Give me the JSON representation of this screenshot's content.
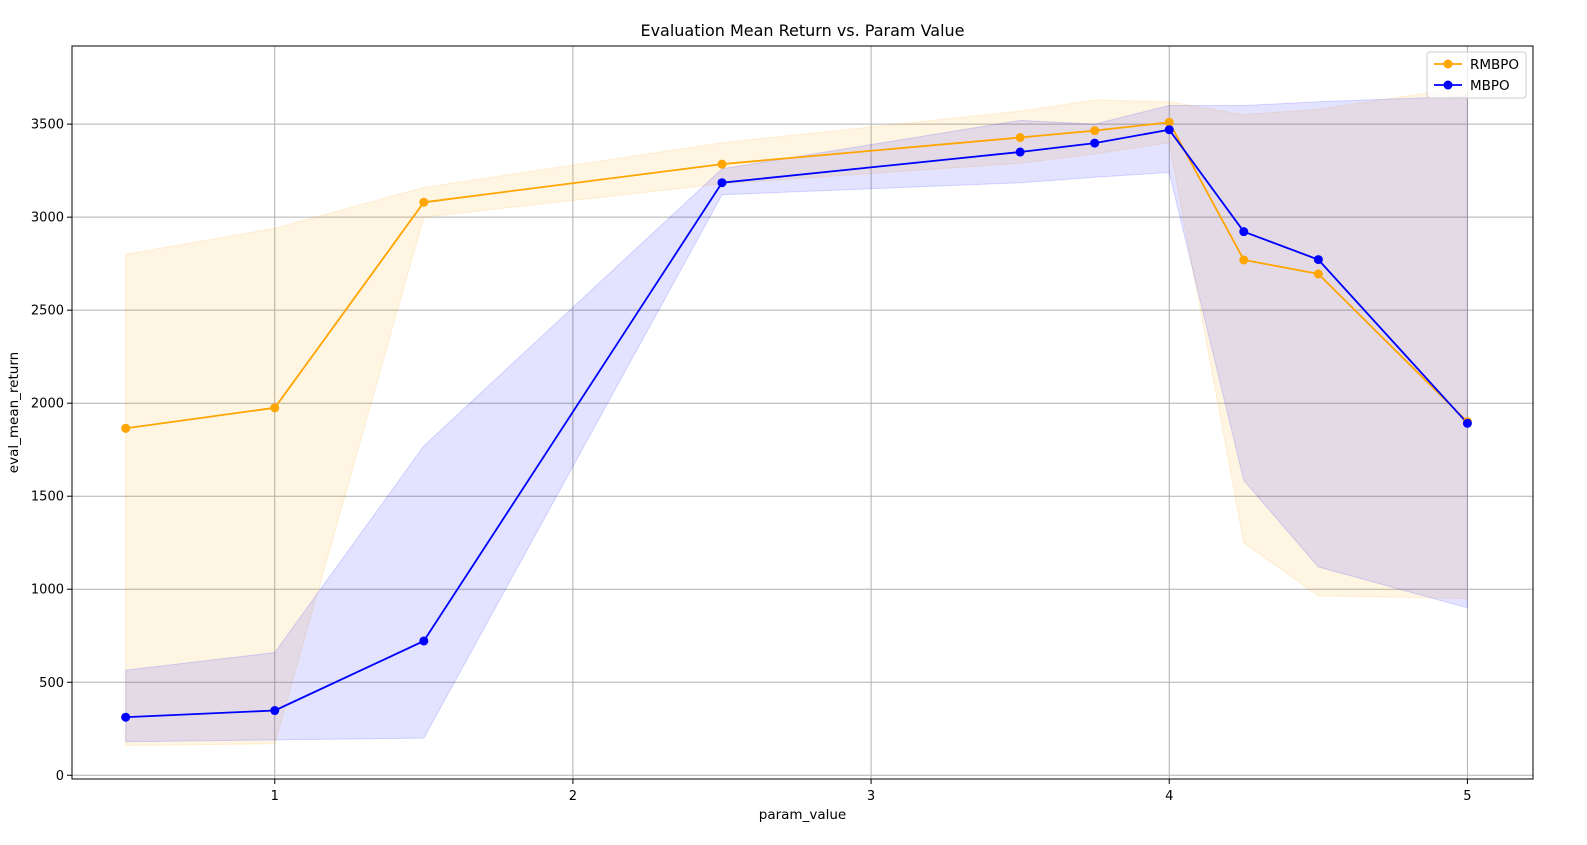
{
  "chart_data": {
    "type": "line",
    "title": "Evaluation Mean Return vs. Param Value",
    "xlabel": "param_value",
    "ylabel": "eval_mean_return",
    "xlim": [
      0.32,
      5.22
    ],
    "ylim": [
      -20,
      3920
    ],
    "xticks": [
      1,
      2,
      3,
      4,
      5
    ],
    "yticks": [
      0,
      500,
      1000,
      1500,
      2000,
      2500,
      3000,
      3500
    ],
    "grid": true,
    "legend_position": "top-right",
    "x": [
      0.5,
      1.0,
      1.5,
      2.5,
      3.5,
      3.75,
      4.0,
      4.25,
      4.5,
      5.0
    ],
    "series": [
      {
        "name": "RMBPO",
        "color": "#ffa500",
        "band_color": "#ffa500",
        "values": [
          1865,
          1975,
          3080,
          3285,
          3428,
          3465,
          3510,
          2770,
          2695,
          1900
        ],
        "upper": [
          2800,
          2940,
          3160,
          3400,
          3570,
          3630,
          3620,
          3550,
          3580,
          3700
        ],
        "lower": [
          160,
          170,
          3000,
          3180,
          3290,
          3340,
          3400,
          1250,
          965,
          950
        ]
      },
      {
        "name": "MBPO",
        "color": "#0000ff",
        "band_color": "#0000ff",
        "values": [
          312,
          348,
          722,
          3185,
          3350,
          3398,
          3470,
          2922,
          2772,
          1892
        ],
        "upper": [
          565,
          660,
          1770,
          3260,
          3520,
          3500,
          3600,
          3600,
          3620,
          3650
        ],
        "lower": [
          180,
          190,
          200,
          3120,
          3185,
          3215,
          3240,
          1585,
          1120,
          900
        ]
      }
    ]
  }
}
